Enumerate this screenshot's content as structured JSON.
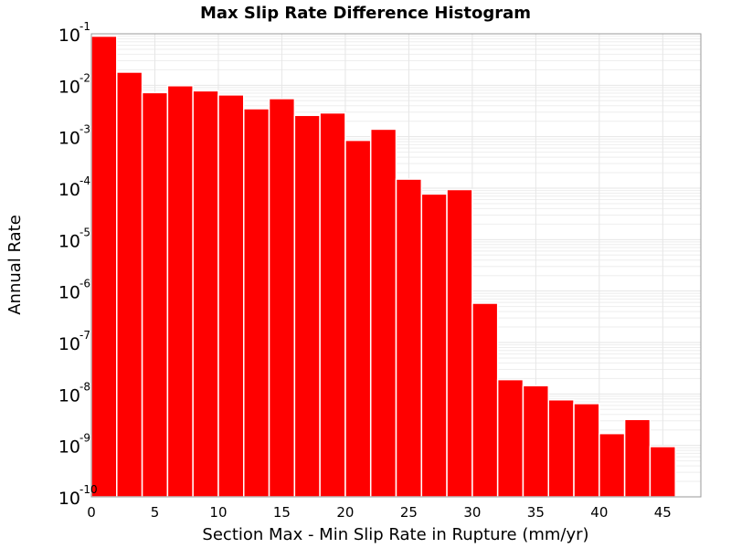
{
  "chart_data": {
    "type": "bar",
    "title": "Max Slip Rate Difference Histogram",
    "xlabel": "Section Max - Min Slip Rate in Rupture (mm/yr)",
    "ylabel": "Annual Rate",
    "xlim": [
      0,
      48
    ],
    "ylim": [
      1e-10,
      0.1
    ],
    "y_scale": "log",
    "bin_width": 2,
    "grid": true,
    "colors": {
      "bar": "#ff0000",
      "bar_edge": "#ffffff",
      "grid": "#e6e6e6",
      "axis": "#999999"
    },
    "x_ticks": [
      "0",
      "5",
      "10",
      "15",
      "20",
      "25",
      "30",
      "35",
      "40",
      "45"
    ],
    "y_ticks": [
      {
        "base": "10",
        "exp": "-10"
      },
      {
        "base": "10",
        "exp": "-9"
      },
      {
        "base": "10",
        "exp": "-8"
      },
      {
        "base": "10",
        "exp": "-7"
      },
      {
        "base": "10",
        "exp": "-6"
      },
      {
        "base": "10",
        "exp": "-5"
      },
      {
        "base": "10",
        "exp": "-4"
      },
      {
        "base": "10",
        "exp": "-3"
      },
      {
        "base": "10",
        "exp": "-2"
      },
      {
        "base": "10",
        "exp": "-1"
      }
    ],
    "bins": [
      {
        "x": 1,
        "value": 0.09
      },
      {
        "x": 3,
        "value": 0.018
      },
      {
        "x": 5,
        "value": 0.0072
      },
      {
        "x": 7,
        "value": 0.0098
      },
      {
        "x": 9,
        "value": 0.0078
      },
      {
        "x": 11,
        "value": 0.0065
      },
      {
        "x": 13,
        "value": 0.0035
      },
      {
        "x": 15,
        "value": 0.0055
      },
      {
        "x": 17,
        "value": 0.0026
      },
      {
        "x": 19,
        "value": 0.0029
      },
      {
        "x": 21,
        "value": 0.00085
      },
      {
        "x": 23,
        "value": 0.0014
      },
      {
        "x": 25,
        "value": 0.00015
      },
      {
        "x": 27,
        "value": 7.7e-05
      },
      {
        "x": 29,
        "value": 9.4e-05
      },
      {
        "x": 31,
        "value": 5.8e-07
      },
      {
        "x": 33,
        "value": 1.9e-08
      },
      {
        "x": 35,
        "value": 1.45e-08
      },
      {
        "x": 37,
        "value": 7.7e-09
      },
      {
        "x": 39,
        "value": 6.5e-09
      },
      {
        "x": 41,
        "value": 1.7e-09
      },
      {
        "x": 43,
        "value": 3.2e-09
      },
      {
        "x": 45,
        "value": 9.5e-10
      }
    ]
  }
}
